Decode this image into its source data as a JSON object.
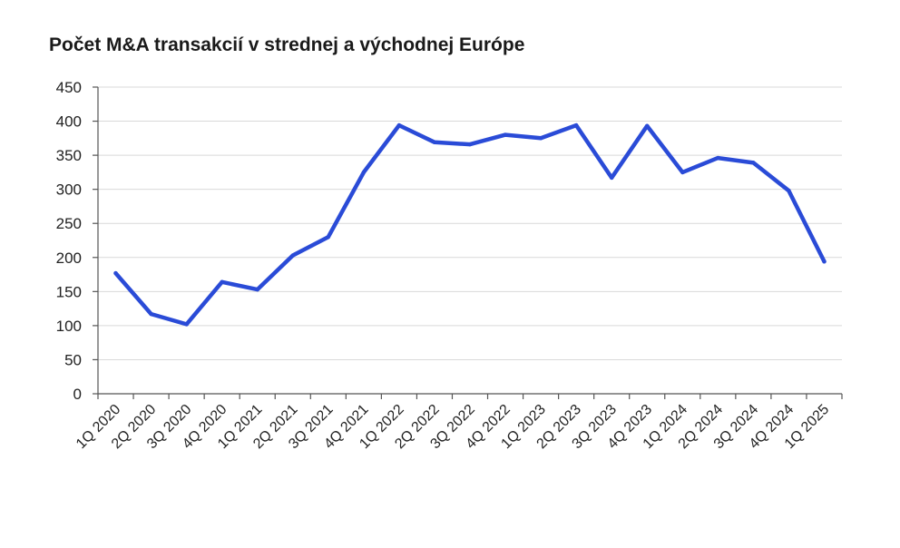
{
  "chart_data": {
    "type": "line",
    "title": "Počet M&A transakcií v strednej a východnej Európe",
    "xlabel": "",
    "ylabel": "",
    "ylim": [
      0,
      450
    ],
    "yticks": [
      0,
      50,
      100,
      150,
      200,
      250,
      300,
      350,
      400,
      450
    ],
    "grid": true,
    "legend": "none",
    "color": "#2a4bd7",
    "categories": [
      "1Q 2020",
      "2Q 2020",
      "3Q 2020",
      "4Q 2020",
      "1Q 2021",
      "2Q 2021",
      "3Q 2021",
      "4Q 2021",
      "1Q 2022",
      "2Q 2022",
      "3Q 2022",
      "4Q 2022",
      "1Q 2023",
      "2Q 2023",
      "3Q 2023",
      "4Q 2023",
      "1Q 2024",
      "2Q 2024",
      "3Q 2024",
      "4Q 2024",
      "1Q 2025"
    ],
    "series": [
      {
        "values": [
          177,
          117,
          102,
          164,
          153,
          203,
          230,
          325,
          394,
          369,
          366,
          380,
          375,
          394,
          317,
          393,
          325,
          346,
          339,
          298,
          194
        ]
      }
    ]
  }
}
